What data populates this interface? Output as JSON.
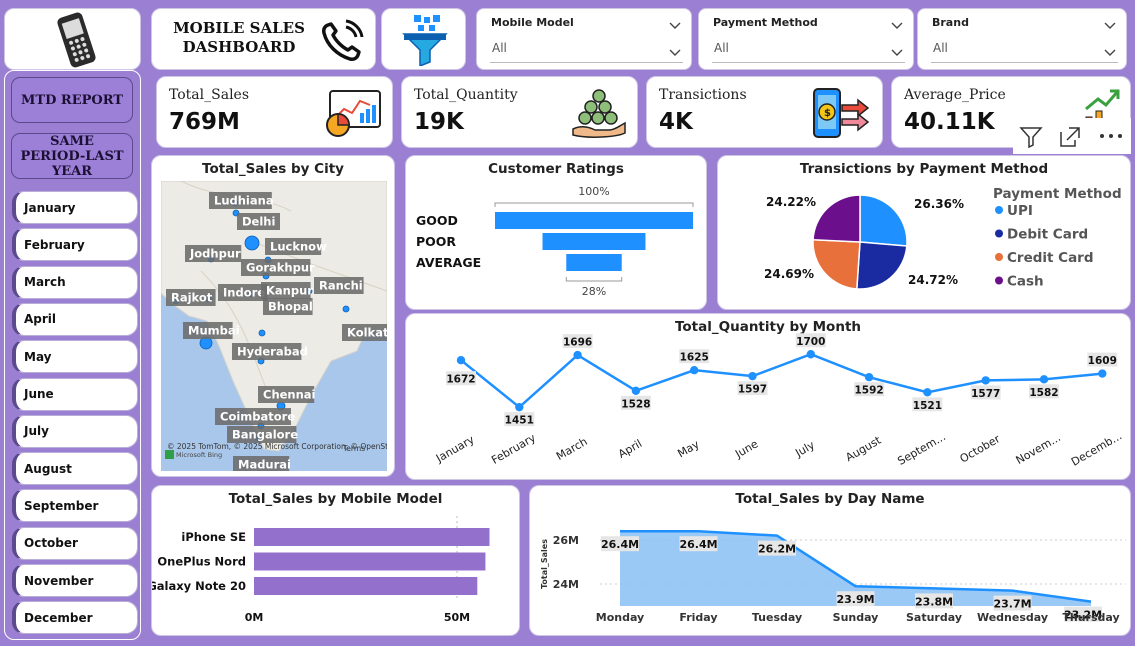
{
  "header": {
    "title_line1": "MOBILE SALES",
    "title_line2": "DASHBOARD"
  },
  "sidebar": {
    "buttons": [
      "MTD REPORT",
      "SAME PERIOD-LAST YEAR"
    ],
    "months": [
      "January",
      "February",
      "March",
      "April",
      "May",
      "June",
      "July",
      "August",
      "September",
      "October",
      "November",
      "December"
    ]
  },
  "slicers": [
    {
      "label": "Mobile Model",
      "value": "All"
    },
    {
      "label": "Payment Method",
      "value": "All"
    },
    {
      "label": "Brand",
      "value": "All"
    }
  ],
  "kpis": [
    {
      "label": "Total_Sales",
      "value": "769M",
      "icon": "sales-chart-icon"
    },
    {
      "label": "Total_Quantity",
      "value": "19K",
      "icon": "coins-hand-icon"
    },
    {
      "label": "Transictions",
      "value": "4K",
      "icon": "mobile-payment-icon"
    },
    {
      "label": "Average_Price",
      "value": "40.11K",
      "icon": "growth-chart-icon"
    }
  ],
  "colors": {
    "background": "#9a7fd2",
    "blue": "#1e90ff",
    "navy": "#1a2aa0",
    "orange": "#e8703a",
    "purple": "#6b0f8c",
    "bar_purple": "#9370cc",
    "area": "#8fc3f5"
  },
  "chart_data": [
    {
      "type": "map",
      "title": "Total_Sales by City",
      "cities": [
        "Ludhiana",
        "Delhi",
        "Jodhpur",
        "Lucknow",
        "Gorakhpur",
        "Rajkot",
        "Indore",
        "Kanpur",
        "Ranchi",
        "Bhopal",
        "Mumbai",
        "Kolkata",
        "Hyderabad",
        "Chennai",
        "Coimbatore",
        "Bangalore",
        "Madurai"
      ],
      "attribution": "© 2025 TomTom, © 2025 Microsoft Corporation, © OpenStreetMap",
      "terms": "Terms",
      "bing_label": "Microsoft Bing"
    },
    {
      "type": "funnel",
      "title": "Customer Ratings",
      "categories": [
        "GOOD",
        "POOR",
        "AVERAGE"
      ],
      "values": [
        100,
        52,
        28
      ],
      "top_label": "100%",
      "bottom_label": "28%"
    },
    {
      "type": "pie",
      "title": "Transictions by Payment Method",
      "legend_title": "Payment Method",
      "categories": [
        "UPI",
        "Debit Card",
        "Credit Card",
        "Cash"
      ],
      "values": [
        26.36,
        24.72,
        24.69,
        24.22
      ],
      "labels": [
        "26.36%",
        "24.72%",
        "24.69%",
        "24.22%"
      ],
      "legend": "right"
    },
    {
      "type": "line",
      "title": "Total_Quantity by Month",
      "categories": [
        "January",
        "February",
        "March",
        "April",
        "May",
        "June",
        "July",
        "August",
        "Septem...",
        "October",
        "Novem...",
        "Decemb..."
      ],
      "values": [
        1672,
        1451,
        1696,
        1528,
        1625,
        1597,
        1700,
        1592,
        1521,
        1577,
        1582,
        1609
      ],
      "ylim": [
        1400,
        1720
      ]
    },
    {
      "type": "bar",
      "orientation": "horizontal",
      "title": "Total_Sales by Mobile Model",
      "categories": [
        "iPhone SE",
        "OnePlus Nord",
        "Galaxy Note 20"
      ],
      "values": [
        58,
        57,
        55
      ],
      "xticks": [
        "0M",
        "50M"
      ],
      "xlim": [
        0,
        60
      ]
    },
    {
      "type": "area",
      "title": "Total_Sales by Day Name",
      "ylabel": "Total_Sales",
      "categories": [
        "Monday",
        "Friday",
        "Tuesday",
        "Sunday",
        "Saturday",
        "Wednesday",
        "Thursday"
      ],
      "values": [
        26.4,
        26.4,
        26.2,
        23.9,
        23.8,
        23.7,
        23.2
      ],
      "labels": [
        "26.4M",
        "26.4M",
        "26.2M",
        "23.9M",
        "23.8M",
        "23.7M",
        "23.2M"
      ],
      "yticks": [
        "26M",
        "24M"
      ],
      "ylim": [
        22.9,
        27.2
      ]
    }
  ]
}
